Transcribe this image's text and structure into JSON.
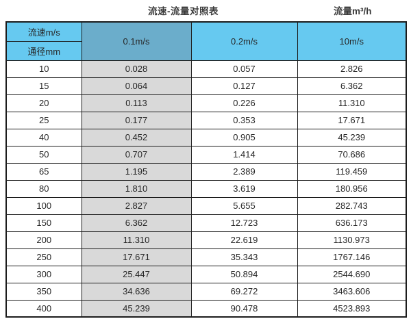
{
  "header": {
    "title": "流速-流量对照表",
    "right_unit_label": "流量m³/h"
  },
  "chart_data": {
    "type": "table",
    "title": "流速-流量对照表",
    "unit_label": "流量m³/h",
    "corner_top_label": "流速m/s",
    "corner_bottom_label": "通径mm",
    "velocity_columns": [
      "0.1m/s",
      "0.2m/s",
      "10m/s"
    ],
    "diameters_mm": [
      "10",
      "15",
      "20",
      "25",
      "40",
      "50",
      "65",
      "80",
      "100",
      "150",
      "200",
      "250",
      "300",
      "350",
      "400"
    ],
    "flow_values": [
      [
        "0.028",
        "0.057",
        "2.826"
      ],
      [
        "0.064",
        "0.127",
        "6.362"
      ],
      [
        "0.113",
        "0.226",
        "11.310"
      ],
      [
        "0.177",
        "0.353",
        "17.671"
      ],
      [
        "0.452",
        "0.905",
        "45.239"
      ],
      [
        "0.707",
        "1.414",
        "70.686"
      ],
      [
        "1.195",
        "2.389",
        "119.459"
      ],
      [
        "1.810",
        "3.619",
        "180.956"
      ],
      [
        "2.827",
        "5.655",
        "282.743"
      ],
      [
        "6.362",
        "12.723",
        "636.173"
      ],
      [
        "11.310",
        "22.619",
        "1130.973"
      ],
      [
        "17.671",
        "35.343",
        "1767.146"
      ],
      [
        "25.447",
        "50.894",
        "2544.690"
      ],
      [
        "34.636",
        "69.272",
        "3463.606"
      ],
      [
        "45.239",
        "90.478",
        "4523.893"
      ]
    ]
  },
  "colors": {
    "header_blue": "#66c9f0",
    "header_muted_blue": "#6badcb",
    "shaded_column_gray": "#d9d9d9",
    "border": "#1c1c1c",
    "text": "#262626"
  }
}
